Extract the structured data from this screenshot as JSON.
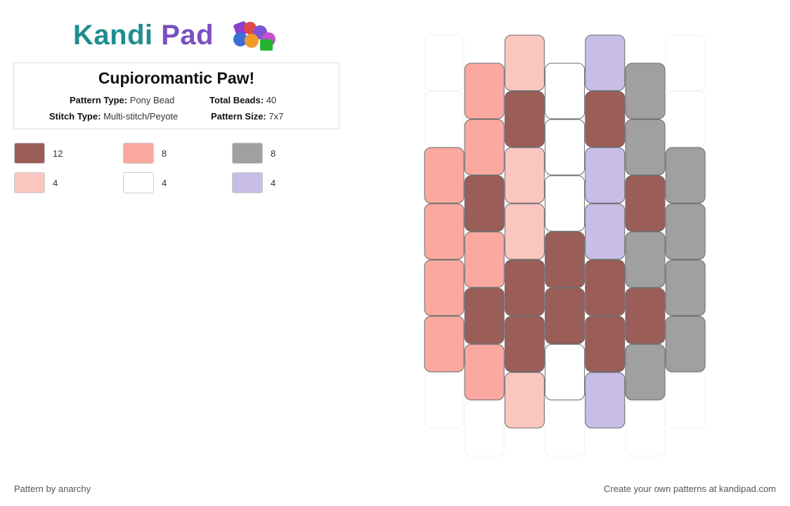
{
  "brand": {
    "name_part1": "Kandi",
    "name_part2": "Pad"
  },
  "pattern": {
    "title": "Cupioromantic Paw!",
    "type_label": "Pattern Type:",
    "type_value": "Pony Bead",
    "beads_label": "Total Beads:",
    "beads_value": "40",
    "stitch_label": "Stitch Type:",
    "stitch_value": "Multi-stitch/Peyote",
    "size_label": "Pattern Size:",
    "size_value": "7x7"
  },
  "legend": [
    {
      "color": "#9b5d58",
      "count": "12"
    },
    {
      "color": "#fba8a0",
      "count": "8"
    },
    {
      "color": "#a0a0a0",
      "count": "8"
    },
    {
      "color": "#fcc6c0",
      "count": "4"
    },
    {
      "color": "#ffffff",
      "count": "4"
    },
    {
      "color": "#c7bde6",
      "count": "4"
    }
  ],
  "bead_grid": {
    "columns": [
      [
        "empty",
        "empty",
        "salmon",
        "salmon",
        "salmon",
        "salmon",
        "empty"
      ],
      [
        "salmon",
        "salmon",
        "brown",
        "salmon",
        "brown",
        "salmon",
        "empty"
      ],
      [
        "pink",
        "brown",
        "pink",
        "pink",
        "brown",
        "brown",
        "pink"
      ],
      [
        "white",
        "white",
        "white",
        "brown",
        "brown",
        "white",
        "empty"
      ],
      [
        "lavender",
        "brown",
        "lavender",
        "lavender",
        "brown",
        "brown",
        "lavender"
      ],
      [
        "gray",
        "gray",
        "brown",
        "gray",
        "brown",
        "gray",
        "empty"
      ],
      [
        "empty",
        "empty",
        "gray",
        "gray",
        "gray",
        "gray",
        "empty"
      ]
    ],
    "palette": {
      "brown": "#9b5d58",
      "salmon": "#fba8a0",
      "gray": "#a0a0a0",
      "pink": "#fcc6c0",
      "white": "#ffffff",
      "lavender": "#c7bde6"
    }
  },
  "footer": {
    "credit": "Pattern by anarchy",
    "promo": "Create your own patterns at kandipad.com"
  }
}
